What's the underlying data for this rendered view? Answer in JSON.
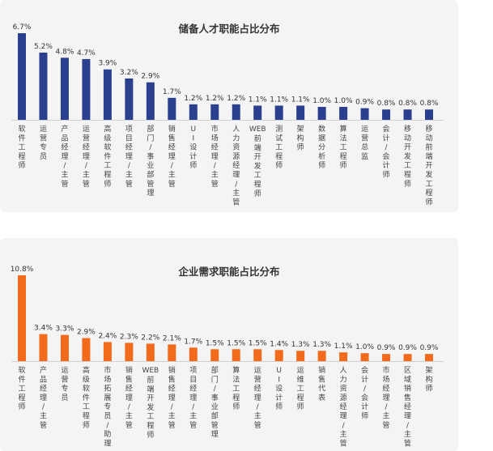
{
  "chart_data": [
    {
      "type": "bar",
      "title": "储备人才职能占比分布",
      "color": "#2b3f8f",
      "value_suffix": "%",
      "categories": [
        "软件工程师",
        "运营专员",
        "产品经理/主管",
        "运营经理/主管",
        "高级软件工程师",
        "项目经理/主管",
        "部门/事业部管理",
        "销售经理/主管",
        "UI设计师",
        "市场经理/主管",
        "人力资源经理/主管",
        "WEB前端开发工程师",
        "测试工程师",
        "架构师",
        "数据分析师",
        "算法工程师",
        "运营总监",
        "会计/会计师",
        "移动开发工程师",
        "移动前端开发工程师"
      ],
      "values": [
        6.7,
        5.2,
        4.8,
        4.7,
        3.9,
        3.2,
        2.9,
        1.7,
        1.2,
        1.2,
        1.2,
        1.1,
        1.1,
        1.1,
        1.0,
        1.0,
        0.9,
        0.8,
        0.8,
        0.8
      ]
    },
    {
      "type": "bar",
      "title": "企业需求职能占比分布",
      "color": "#f26b1d",
      "value_suffix": "%",
      "categories": [
        "软件工程师",
        "产品经理/主管",
        "运营专员",
        "高级软件工程师",
        "市场拓展专员/助理",
        "销售经理/主管",
        "WEB前端开发工程师",
        "销售经理/主管",
        "项目经理/主管",
        "部门/事业部管理",
        "算法工程师",
        "运营经理/主管",
        "UI设计师",
        "运维工程师",
        "销售代表",
        "人力资源经理/主管",
        "会计/会计师",
        "市场经理/主管",
        "区域销售经理/主管",
        "架构师"
      ],
      "values": [
        10.8,
        3.4,
        3.3,
        2.9,
        2.4,
        2.3,
        2.2,
        2.1,
        1.7,
        1.5,
        1.5,
        1.5,
        1.4,
        1.3,
        1.3,
        1.1,
        1.0,
        0.9,
        0.9,
        0.9
      ]
    }
  ]
}
